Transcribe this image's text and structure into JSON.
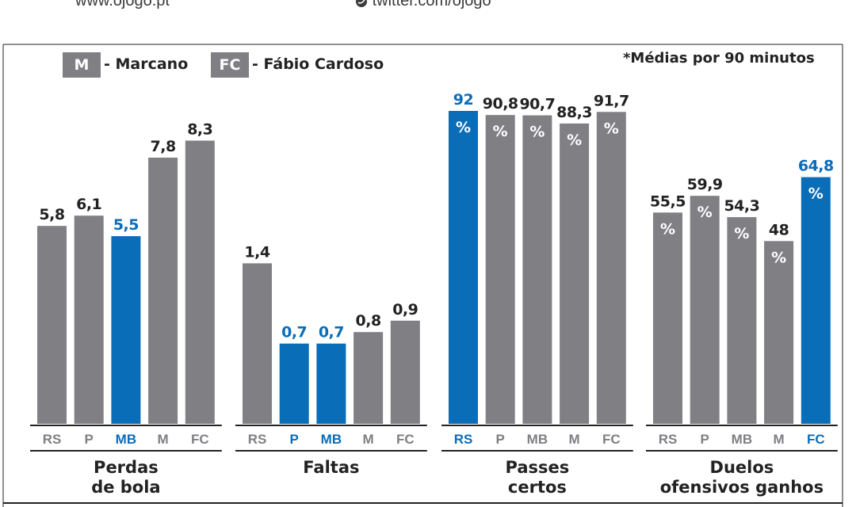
{
  "header": {
    "website": "www.ojogo.pt",
    "twitter": "twitter.com/ojogo",
    "twitter_icon": "twitter-icon"
  },
  "legend": {
    "items": [
      {
        "code": "M",
        "label": "- Marcano"
      },
      {
        "code": "FC",
        "label": "- Fábio Cardoso"
      }
    ]
  },
  "note": "*Médias por 90 minutos",
  "colors": {
    "normal": "#7f7f84",
    "highlight": "#0a6db8",
    "tick_normal": "#7f7f84",
    "tick_highlight": "#0a6db8",
    "text": "#222222"
  },
  "chart_data": [
    {
      "type": "bar",
      "title": "Perdas de bola",
      "title_lines": [
        "Perdas",
        "de bola"
      ],
      "categories": [
        "RS",
        "P",
        "MB",
        "M",
        "FC"
      ],
      "values": [
        5.8,
        6.1,
        5.5,
        7.8,
        8.3
      ],
      "labels": [
        "5,8",
        "6,1",
        "5,5",
        "7,8",
        "8,3"
      ],
      "highlight": [
        2
      ],
      "percent": false,
      "ylim": [
        0,
        9.17
      ]
    },
    {
      "type": "bar",
      "title": "Faltas",
      "title_lines": [
        "Faltas"
      ],
      "categories": [
        "RS",
        "P",
        "MB",
        "M",
        "FC"
      ],
      "values": [
        1.4,
        0.7,
        0.7,
        0.8,
        0.9
      ],
      "labels": [
        "1,4",
        "0,7",
        "0,7",
        "0,8",
        "0,9"
      ],
      "highlight": [
        1,
        2
      ],
      "percent": false,
      "ylim": [
        0,
        2.73
      ]
    },
    {
      "type": "bar",
      "title": "Passes certos",
      "title_lines": [
        "Passes",
        "certos"
      ],
      "categories": [
        "RS",
        "P",
        "MB",
        "M",
        "FC"
      ],
      "values": [
        92,
        90.8,
        90.7,
        88.3,
        91.7
      ],
      "labels": [
        "92",
        "90,8",
        "90,7",
        "88,3",
        "91,7"
      ],
      "highlight": [
        0
      ],
      "percent": true,
      "ylim": [
        0,
        92
      ]
    },
    {
      "type": "bar",
      "title": "Duelos ofensivos ganhos",
      "title_lines": [
        "Duelos",
        "ofensivos ganhos"
      ],
      "categories": [
        "RS",
        "P",
        "MB",
        "M",
        "FC"
      ],
      "values": [
        55.5,
        59.9,
        54.3,
        48,
        64.8
      ],
      "labels": [
        "55,5",
        "59,9",
        "54,3",
        "48",
        "64,8"
      ],
      "highlight": [
        4
      ],
      "percent": true,
      "ylim": [
        0,
        82.2
      ]
    }
  ]
}
